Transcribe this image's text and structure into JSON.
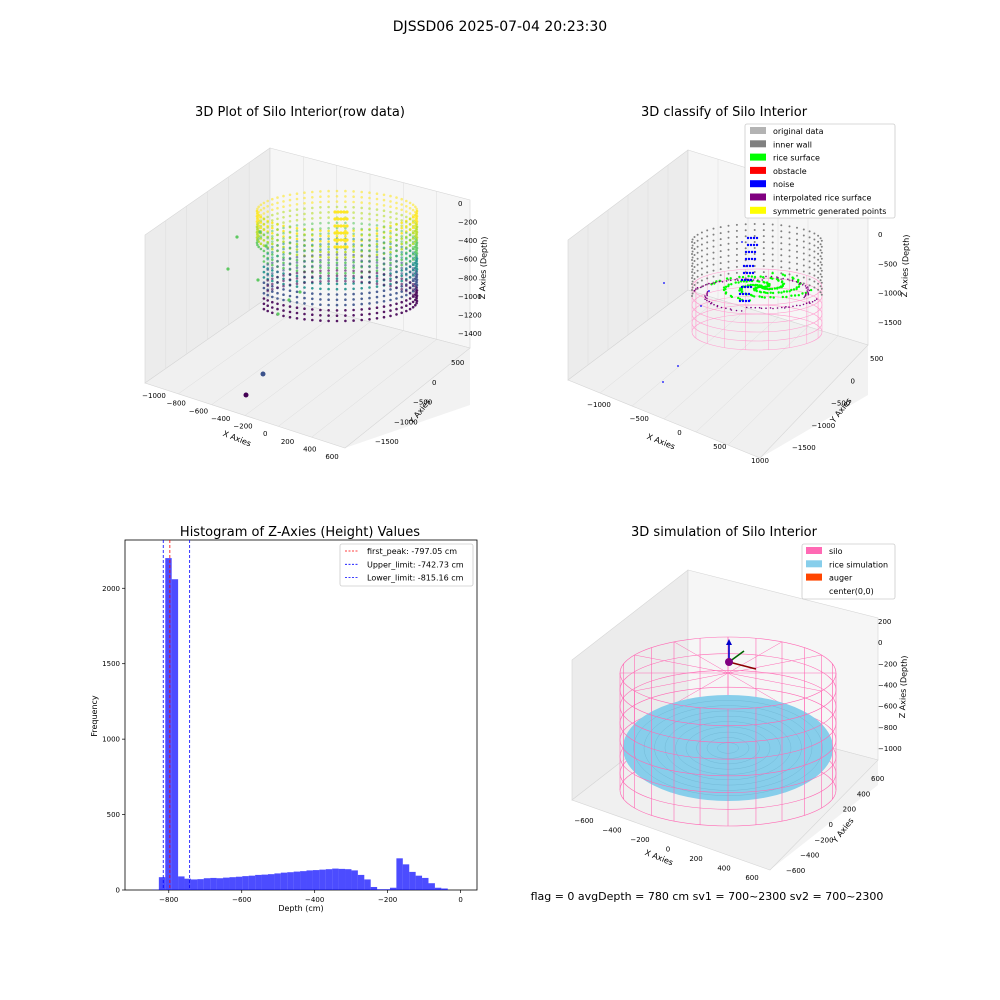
{
  "figure": {
    "suptitle": "DJSSD06 2025-07-04 20:23:30",
    "footer": "flag = 0     avgDepth = 780 cm  sv1 = 700~2300  sv2 = 700~2300"
  },
  "panels": {
    "raw": {
      "title": "3D Plot of Silo Interior(row data)",
      "xlabel": "X Axies",
      "ylabel": "Y Axies",
      "zlabel": "Z Axies (Depth)",
      "xticks": [
        "−1000",
        "−800",
        "−600",
        "−400",
        "−200",
        "0",
        "200",
        "400",
        "600"
      ],
      "yticks": [
        "500",
        "0",
        "−500",
        "−1000",
        "−1500"
      ],
      "zticks": [
        "0",
        "−200",
        "−400",
        "−600",
        "−800",
        "−1000",
        "−1200",
        "−1400"
      ]
    },
    "classify": {
      "title": "3D classify of Silo Interior",
      "xlabel": "X Axies",
      "ylabel": "Y Axies",
      "zlabel": "Z Axies (Depth)",
      "xticks": [
        "−1000",
        "−500",
        "0",
        "500",
        "1000"
      ],
      "yticks": [
        "500",
        "0",
        "−500",
        "−1000",
        "−1500"
      ],
      "zticks": [
        "0",
        "−500",
        "−1000",
        "−1500"
      ],
      "legend": [
        {
          "label": "original data",
          "color": "#b3b3b3"
        },
        {
          "label": "inner wall",
          "color": "#808080"
        },
        {
          "label": "rice surface",
          "color": "#00ff00"
        },
        {
          "label": "obstacle",
          "color": "#ff0000"
        },
        {
          "label": "noise",
          "color": "#0000ff"
        },
        {
          "label": "interpolated rice surface",
          "color": "#800080"
        },
        {
          "label": "symmetric generated points",
          "color": "#ffff00"
        }
      ]
    },
    "simulation": {
      "title": "3D simulation of Silo Interior",
      "xlabel": "X Axies",
      "ylabel": "Y Axies",
      "zlabel": "Z Axies (Depth)",
      "xticks": [
        "−600",
        "−400",
        "−200",
        "0",
        "200",
        "400",
        "600"
      ],
      "yticks": [
        "600",
        "400",
        "200",
        "0",
        "−200",
        "−400",
        "−600"
      ],
      "zticks": [
        "200",
        "0",
        "−200",
        "−400",
        "−600",
        "−800",
        "−1000"
      ],
      "legend": [
        {
          "label": "silo",
          "color": "#ff69b4"
        },
        {
          "label": "rice simulation",
          "color": "#87ceeb"
        },
        {
          "label": "auger",
          "color": "#ff4500"
        },
        {
          "label": "center(0,0)",
          "color": ""
        }
      ]
    }
  },
  "chart_data": [
    {
      "type": "bar",
      "title": "Histogram of Z-Axies (Height) Values",
      "xlabel": "Depth (cm)",
      "ylabel": "Frequency",
      "bar_color": "#0000ff",
      "xlim": [
        -920,
        45
      ],
      "ylim": [
        0,
        2320
      ],
      "xticks": [
        -800,
        -600,
        -400,
        -200,
        0
      ],
      "xtick_labels": [
        "−800",
        "−600",
        "−400",
        "−200",
        "0"
      ],
      "yticks": [
        0,
        500,
        1000,
        1500,
        2000
      ],
      "bin_start": -880,
      "bin_width": 17.6,
      "values": [
        0,
        0,
        2,
        85,
        2200,
        2060,
        90,
        75,
        70,
        72,
        78,
        80,
        78,
        82,
        85,
        88,
        92,
        95,
        100,
        102,
        105,
        110,
        115,
        118,
        122,
        125,
        130,
        132,
        135,
        138,
        142,
        140,
        138,
        130,
        100,
        70,
        20,
        5,
        5,
        15,
        210,
        170,
        120,
        95,
        80,
        45,
        15,
        10
      ],
      "lines": [
        {
          "label": "first_peak: -797.05 cm",
          "x": -797.05,
          "color": "#ff0000"
        },
        {
          "label": "Upper_limit: -742.73 cm",
          "x": -742.73,
          "color": "#0000ff"
        },
        {
          "label": "Lower_limit: -815.16 cm",
          "x": -815.16,
          "color": "#0000ff"
        }
      ],
      "legend_position": "upper right"
    }
  ]
}
